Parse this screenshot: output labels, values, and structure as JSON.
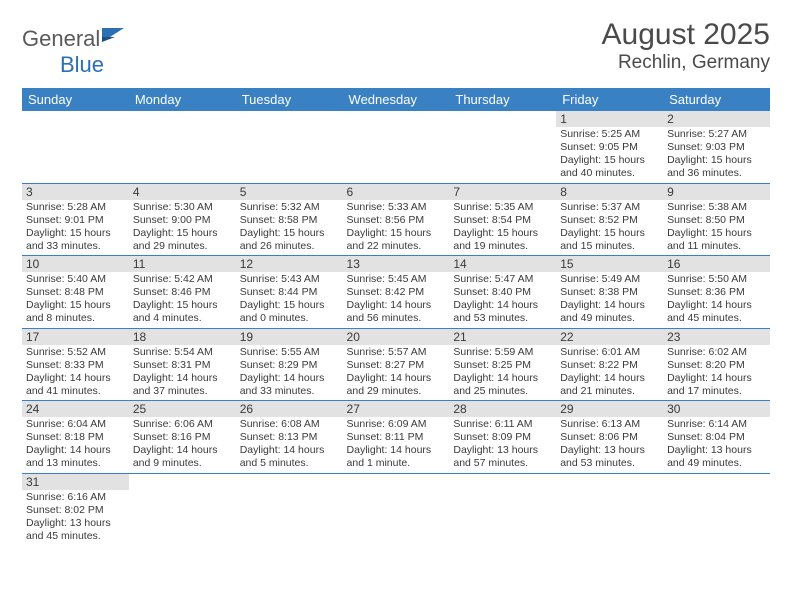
{
  "logo": {
    "general": "General",
    "blue": "Blue"
  },
  "title": "August 2025",
  "location": "Rechlin, Germany",
  "colors": {
    "header_bg": "#3a81c4",
    "header_text": "#ffffff",
    "daynum_bg": "#e2e2e2",
    "border": "#3a81c4",
    "text": "#3a3a3a",
    "logo_gray": "#5a5a5a",
    "logo_blue": "#2d6fb5"
  },
  "weekdays": [
    "Sunday",
    "Monday",
    "Tuesday",
    "Wednesday",
    "Thursday",
    "Friday",
    "Saturday"
  ],
  "weeks": [
    [
      null,
      null,
      null,
      null,
      null,
      {
        "d": "1",
        "sr": "Sunrise: 5:25 AM",
        "ss": "Sunset: 9:05 PM",
        "dl": "Daylight: 15 hours and 40 minutes."
      },
      {
        "d": "2",
        "sr": "Sunrise: 5:27 AM",
        "ss": "Sunset: 9:03 PM",
        "dl": "Daylight: 15 hours and 36 minutes."
      }
    ],
    [
      {
        "d": "3",
        "sr": "Sunrise: 5:28 AM",
        "ss": "Sunset: 9:01 PM",
        "dl": "Daylight: 15 hours and 33 minutes."
      },
      {
        "d": "4",
        "sr": "Sunrise: 5:30 AM",
        "ss": "Sunset: 9:00 PM",
        "dl": "Daylight: 15 hours and 29 minutes."
      },
      {
        "d": "5",
        "sr": "Sunrise: 5:32 AM",
        "ss": "Sunset: 8:58 PM",
        "dl": "Daylight: 15 hours and 26 minutes."
      },
      {
        "d": "6",
        "sr": "Sunrise: 5:33 AM",
        "ss": "Sunset: 8:56 PM",
        "dl": "Daylight: 15 hours and 22 minutes."
      },
      {
        "d": "7",
        "sr": "Sunrise: 5:35 AM",
        "ss": "Sunset: 8:54 PM",
        "dl": "Daylight: 15 hours and 19 minutes."
      },
      {
        "d": "8",
        "sr": "Sunrise: 5:37 AM",
        "ss": "Sunset: 8:52 PM",
        "dl": "Daylight: 15 hours and 15 minutes."
      },
      {
        "d": "9",
        "sr": "Sunrise: 5:38 AM",
        "ss": "Sunset: 8:50 PM",
        "dl": "Daylight: 15 hours and 11 minutes."
      }
    ],
    [
      {
        "d": "10",
        "sr": "Sunrise: 5:40 AM",
        "ss": "Sunset: 8:48 PM",
        "dl": "Daylight: 15 hours and 8 minutes."
      },
      {
        "d": "11",
        "sr": "Sunrise: 5:42 AM",
        "ss": "Sunset: 8:46 PM",
        "dl": "Daylight: 15 hours and 4 minutes."
      },
      {
        "d": "12",
        "sr": "Sunrise: 5:43 AM",
        "ss": "Sunset: 8:44 PM",
        "dl": "Daylight: 15 hours and 0 minutes."
      },
      {
        "d": "13",
        "sr": "Sunrise: 5:45 AM",
        "ss": "Sunset: 8:42 PM",
        "dl": "Daylight: 14 hours and 56 minutes."
      },
      {
        "d": "14",
        "sr": "Sunrise: 5:47 AM",
        "ss": "Sunset: 8:40 PM",
        "dl": "Daylight: 14 hours and 53 minutes."
      },
      {
        "d": "15",
        "sr": "Sunrise: 5:49 AM",
        "ss": "Sunset: 8:38 PM",
        "dl": "Daylight: 14 hours and 49 minutes."
      },
      {
        "d": "16",
        "sr": "Sunrise: 5:50 AM",
        "ss": "Sunset: 8:36 PM",
        "dl": "Daylight: 14 hours and 45 minutes."
      }
    ],
    [
      {
        "d": "17",
        "sr": "Sunrise: 5:52 AM",
        "ss": "Sunset: 8:33 PM",
        "dl": "Daylight: 14 hours and 41 minutes."
      },
      {
        "d": "18",
        "sr": "Sunrise: 5:54 AM",
        "ss": "Sunset: 8:31 PM",
        "dl": "Daylight: 14 hours and 37 minutes."
      },
      {
        "d": "19",
        "sr": "Sunrise: 5:55 AM",
        "ss": "Sunset: 8:29 PM",
        "dl": "Daylight: 14 hours and 33 minutes."
      },
      {
        "d": "20",
        "sr": "Sunrise: 5:57 AM",
        "ss": "Sunset: 8:27 PM",
        "dl": "Daylight: 14 hours and 29 minutes."
      },
      {
        "d": "21",
        "sr": "Sunrise: 5:59 AM",
        "ss": "Sunset: 8:25 PM",
        "dl": "Daylight: 14 hours and 25 minutes."
      },
      {
        "d": "22",
        "sr": "Sunrise: 6:01 AM",
        "ss": "Sunset: 8:22 PM",
        "dl": "Daylight: 14 hours and 21 minutes."
      },
      {
        "d": "23",
        "sr": "Sunrise: 6:02 AM",
        "ss": "Sunset: 8:20 PM",
        "dl": "Daylight: 14 hours and 17 minutes."
      }
    ],
    [
      {
        "d": "24",
        "sr": "Sunrise: 6:04 AM",
        "ss": "Sunset: 8:18 PM",
        "dl": "Daylight: 14 hours and 13 minutes."
      },
      {
        "d": "25",
        "sr": "Sunrise: 6:06 AM",
        "ss": "Sunset: 8:16 PM",
        "dl": "Daylight: 14 hours and 9 minutes."
      },
      {
        "d": "26",
        "sr": "Sunrise: 6:08 AM",
        "ss": "Sunset: 8:13 PM",
        "dl": "Daylight: 14 hours and 5 minutes."
      },
      {
        "d": "27",
        "sr": "Sunrise: 6:09 AM",
        "ss": "Sunset: 8:11 PM",
        "dl": "Daylight: 14 hours and 1 minute."
      },
      {
        "d": "28",
        "sr": "Sunrise: 6:11 AM",
        "ss": "Sunset: 8:09 PM",
        "dl": "Daylight: 13 hours and 57 minutes."
      },
      {
        "d": "29",
        "sr": "Sunrise: 6:13 AM",
        "ss": "Sunset: 8:06 PM",
        "dl": "Daylight: 13 hours and 53 minutes."
      },
      {
        "d": "30",
        "sr": "Sunrise: 6:14 AM",
        "ss": "Sunset: 8:04 PM",
        "dl": "Daylight: 13 hours and 49 minutes."
      }
    ],
    [
      {
        "d": "31",
        "sr": "Sunrise: 6:16 AM",
        "ss": "Sunset: 8:02 PM",
        "dl": "Daylight: 13 hours and 45 minutes."
      },
      null,
      null,
      null,
      null,
      null,
      null
    ]
  ]
}
